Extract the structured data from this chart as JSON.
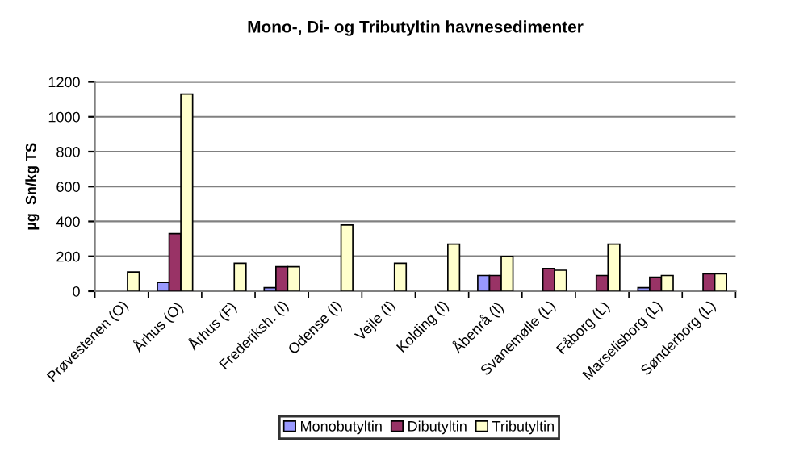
{
  "chart_data": {
    "type": "bar",
    "title": "Mono-, Di- og Tributyltin havnesedimenter",
    "ylabel": "µg  Sn/kg TS",
    "categories": [
      "Prøvestenen (O)",
      "Århus (O)",
      "Århus (F)",
      "Frederiksh. (I)",
      "Odense (I)",
      "Vejle (I)",
      "Kolding (I)",
      "Åbenrå (I)",
      "Svanemølle (L)",
      "Fåborg (L)",
      "Marselisborg (L)",
      "Sønderborg (L)"
    ],
    "series": [
      {
        "name": "Monobutyltin",
        "color": "#9999ff",
        "values": [
          null,
          50,
          null,
          20,
          null,
          null,
          null,
          90,
          null,
          null,
          20,
          null
        ]
      },
      {
        "name": "Dibutyltin",
        "color": "#993366",
        "values": [
          null,
          330,
          null,
          140,
          null,
          null,
          null,
          90,
          130,
          90,
          80,
          100
        ]
      },
      {
        "name": "Tributyltin",
        "color": "#ffffcc",
        "values": [
          110,
          1130,
          160,
          140,
          380,
          160,
          270,
          200,
          120,
          270,
          90,
          100
        ]
      }
    ],
    "ylim": [
      0,
      1200
    ],
    "yticks": [
      0,
      200,
      400,
      600,
      800,
      1000,
      1200
    ],
    "grid": "y",
    "legend": "bottom"
  }
}
